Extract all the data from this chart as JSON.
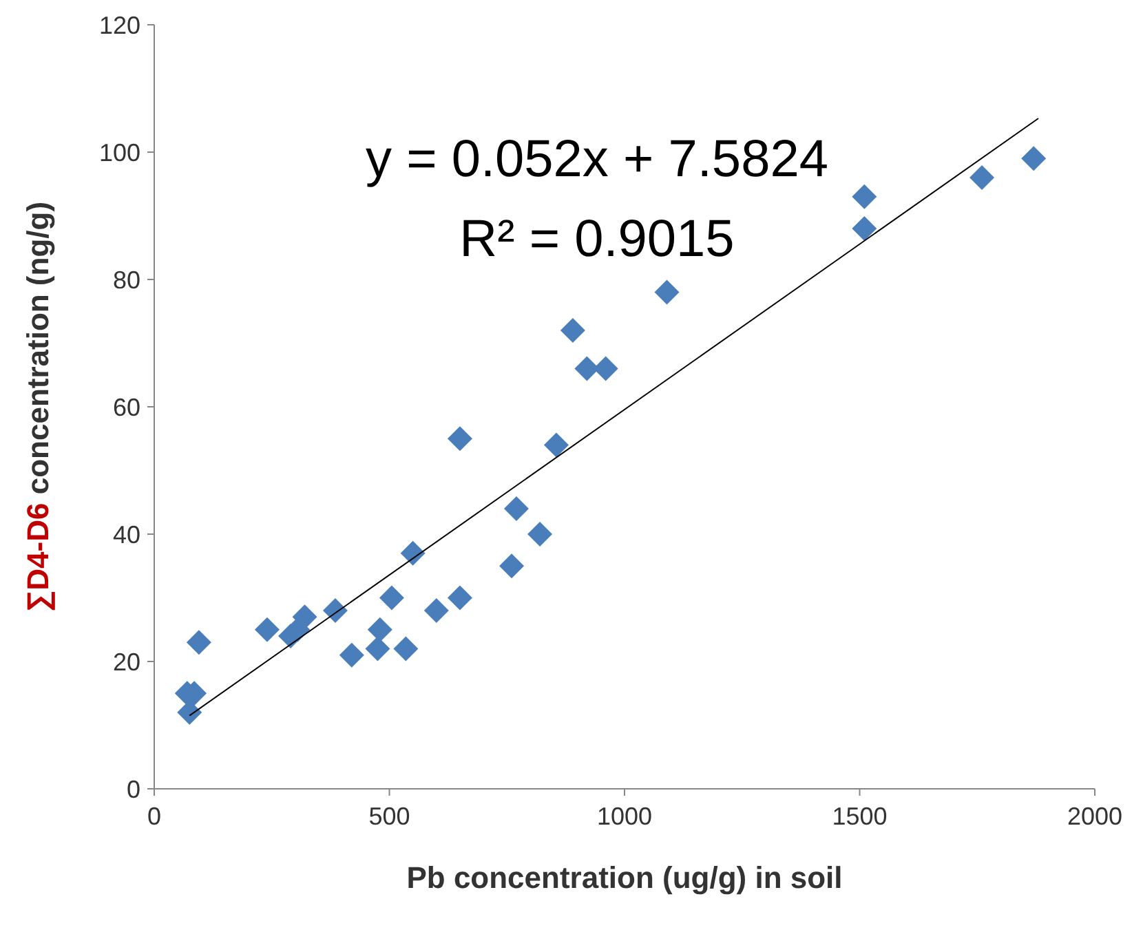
{
  "chart_data": {
    "type": "scatter",
    "xlabel": "Pb concentration (ug/g) in soil",
    "ylabel": "∑D4-D6 concentration (ng/g)",
    "xlim": [
      0,
      2000
    ],
    "xticks": [
      0,
      500,
      1000,
      1500,
      2000
    ],
    "ylim": [
      0,
      120
    ],
    "yticks": [
      0,
      20,
      40,
      60,
      80,
      100,
      120
    ],
    "grid": false,
    "annotations": [
      "y = 0.052x + 7.5824",
      "R² = 0.9015"
    ],
    "series": [
      {
        "marker": "diamond",
        "color": "#4a7ebb",
        "x": [
          75,
          70,
          85,
          95,
          240,
          290,
          305,
          320,
          385,
          420,
          475,
          480,
          505,
          535,
          550,
          600,
          650,
          650,
          760,
          770,
          820,
          855,
          890,
          920,
          960,
          1090,
          1510,
          1510,
          1760,
          1870
        ],
        "values": [
          12,
          15,
          15,
          23,
          25,
          24,
          25,
          27,
          28,
          21,
          22,
          25,
          30,
          22,
          37,
          28,
          55,
          30,
          35,
          44,
          40,
          54,
          72,
          66,
          66,
          78,
          93,
          88,
          96,
          99
        ]
      },
      {
        "type": "line",
        "color": "#000000",
        "marker": "none",
        "line_style": "solid",
        "x": [
          75,
          1880
        ],
        "values": [
          11.5,
          105.3
        ]
      }
    ]
  }
}
